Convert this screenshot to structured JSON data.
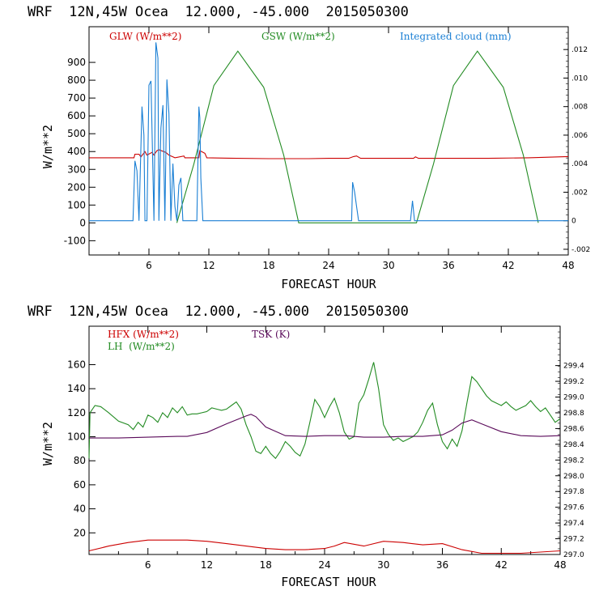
{
  "chart_data": [
    {
      "type": "line",
      "title": "WRF  12N,45W Ocea  12.000, -45.000  2015050300",
      "xlabel": "FORECAST HOUR",
      "ylabel": "W/m**2",
      "xlim": [
        0,
        48
      ],
      "ylim": [
        -180,
        1100
      ],
      "xticks": [
        "6",
        "12",
        "18",
        "24",
        "30",
        "36",
        "42",
        "48"
      ],
      "yticks": [
        "-100",
        "0",
        "100",
        "200",
        "300",
        "400",
        "500",
        "600",
        "700",
        "800",
        "900"
      ],
      "right_axis": {
        "ylim": [
          -0.0024,
          0.0136
        ],
        "ticks": [
          "-.002",
          "0",
          ".002",
          ".004",
          ".006",
          ".008",
          ".010",
          ".012"
        ]
      },
      "legend": {
        "glw": {
          "label": "GLW (W/m**2)",
          "color": "#cc0000"
        },
        "gsw": {
          "label": "GSW (W/m**2)",
          "color": "#228b22"
        },
        "cloud": {
          "label": "Integrated cloud (mm)",
          "color": "#1a7fd4"
        }
      },
      "series": [
        {
          "name": "GLW",
          "axis": "left",
          "color": "#cc0000",
          "x": [
            0,
            4.5,
            4.6,
            5.0,
            5.2,
            5.6,
            5.8,
            6.3,
            6.5,
            6.8,
            7.0,
            7.7,
            8.0,
            8.4,
            8.6,
            9.5,
            9.6,
            10.0,
            11.0,
            11.1,
            11.6,
            11.8,
            14,
            18,
            22,
            24,
            26,
            26.5,
            26.8,
            27.2,
            30,
            32.5,
            32.7,
            33,
            36,
            40,
            44,
            48
          ],
          "values": [
            365,
            365,
            385,
            385,
            370,
            400,
            380,
            395,
            380,
            405,
            410,
            395,
            380,
            370,
            365,
            375,
            365,
            365,
            365,
            405,
            390,
            365,
            363,
            360,
            360,
            362,
            362,
            372,
            375,
            362,
            362,
            362,
            370,
            362,
            362,
            362,
            365,
            372
          ]
        },
        {
          "name": "GSW",
          "axis": "left",
          "color": "#228b22",
          "x": [
            8.8,
            10.5,
            12.5,
            14.9,
            17.5,
            19.5,
            21.0,
            32.8,
            34.5,
            36.5,
            38.9,
            41.5,
            43.5,
            45.0
          ],
          "values": [
            0,
            330,
            770,
            963,
            760,
            380,
            0,
            0,
            330,
            770,
            963,
            760,
            380,
            0
          ]
        },
        {
          "name": "Integrated cloud",
          "axis": "right",
          "color": "#1a7fd4",
          "x": [
            0,
            4.4,
            4.6,
            4.8,
            5.0,
            5.3,
            5.5,
            5.6,
            5.8,
            6.0,
            6.2,
            6.5,
            6.7,
            6.9,
            7.0,
            7.2,
            7.4,
            7.6,
            7.8,
            8.0,
            8.2,
            8.4,
            8.6,
            8.8,
            9.0,
            9.2,
            9.4,
            9.6,
            9.8,
            10.0,
            10.8,
            11.0,
            11.1,
            11.2,
            11.4,
            11.6,
            26.3,
            26.4,
            26.6,
            26.8,
            27.0,
            32.2,
            32.4,
            32.6,
            33,
            48
          ],
          "values": [
            0,
            0,
            0.0042,
            0.0035,
            0,
            0.008,
            0.006,
            0,
            0,
            0.0095,
            0.0098,
            0,
            0.0125,
            0.0114,
            0,
            0.0065,
            0.0081,
            0,
            0.0099,
            0.0075,
            0,
            0.004,
            0.001,
            0,
            0.0025,
            0.003,
            0,
            0,
            0,
            0,
            0,
            0.008,
            0.0072,
            0.003,
            0,
            0,
            0,
            0.0027,
            0.002,
            0.001,
            0,
            0,
            0.0014,
            0,
            0,
            0
          ]
        }
      ]
    },
    {
      "type": "line",
      "title": "WRF  12N,45W Ocea  12.000, -45.000  2015050300",
      "xlabel": "FORECAST HOUR",
      "ylabel": "W/m**2",
      "xlim": [
        0,
        48
      ],
      "ylim": [
        2,
        192
      ],
      "xticks": [
        "6",
        "12",
        "18",
        "24",
        "30",
        "36",
        "42",
        "48"
      ],
      "yticks": [
        "20",
        "40",
        "60",
        "80",
        "100",
        "120",
        "140",
        "160"
      ],
      "right_axis": {
        "ylim": [
          297.0,
          299.9
        ],
        "ticks": [
          "297.0",
          "297.2",
          "297.4",
          "297.6",
          "297.8",
          "298.0",
          "298.2",
          "298.4",
          "298.6",
          "298.8",
          "299.0",
          "299.2",
          "299.4"
        ]
      },
      "legend": {
        "hfx": {
          "label": "HFX (W/m**2)",
          "color": "#cc0000"
        },
        "lh": {
          "label": "LH  (W/m**2)",
          "color": "#228b22"
        },
        "tsk": {
          "label": "TSK (K)",
          "color": "#5a0a5a"
        }
      },
      "series": [
        {
          "name": "HFX",
          "axis": "left",
          "color": "#cc0000",
          "x": [
            0,
            2,
            4,
            6,
            8,
            10,
            12,
            14,
            16,
            18,
            20,
            22,
            24,
            25,
            26,
            28,
            30,
            32,
            34,
            36,
            38,
            40,
            42,
            44,
            46,
            48
          ],
          "values": [
            5,
            9,
            12,
            14,
            14,
            14,
            13,
            11,
            9,
            7,
            6,
            6,
            7,
            9,
            12,
            9,
            13,
            12,
            10,
            11,
            6,
            3,
            3,
            3,
            4,
            5
          ]
        },
        {
          "name": "LH",
          "axis": "left",
          "color": "#228b22",
          "x": [
            0,
            0.1,
            0.6,
            1.2,
            2,
            3,
            4,
            4.5,
            5,
            5.5,
            6,
            6.5,
            7,
            7.5,
            8,
            8.5,
            9,
            9.5,
            10,
            10.5,
            11,
            11.5,
            12,
            12.5,
            13,
            13.5,
            14,
            14.5,
            15,
            15.5,
            16,
            16.5,
            17,
            17.5,
            18,
            18.5,
            19,
            19.5,
            20,
            20.5,
            21,
            21.5,
            22,
            22.5,
            23,
            23.5,
            24,
            24.5,
            25,
            25.5,
            26,
            26.5,
            27,
            27.5,
            28,
            28.5,
            29,
            29.5,
            30,
            30.5,
            31,
            31.5,
            32,
            32.5,
            33,
            33.5,
            34,
            34.5,
            35,
            35.5,
            36,
            36.5,
            37,
            37.5,
            38,
            38.5,
            39,
            39.5,
            40,
            40.5,
            41,
            41.5,
            42,
            42.5,
            43,
            43.5,
            44,
            44.5,
            45,
            45.5,
            46,
            46.5,
            47,
            47.5,
            48
          ],
          "values": [
            82,
            120,
            126,
            125,
            120,
            113,
            110,
            106,
            112,
            108,
            118,
            116,
            112,
            120,
            116,
            124,
            120,
            125,
            118,
            119,
            119,
            120,
            121,
            124,
            123,
            122,
            123,
            126,
            129,
            123,
            110,
            100,
            88,
            86,
            92,
            86,
            82,
            88,
            96,
            92,
            87,
            84,
            94,
            112,
            131,
            125,
            116,
            125,
            132,
            120,
            104,
            98,
            100,
            128,
            135,
            148,
            162,
            140,
            110,
            102,
            97,
            99,
            96,
            98,
            100,
            104,
            112,
            122,
            128,
            110,
            96,
            90,
            98,
            92,
            105,
            128,
            150,
            146,
            140,
            134,
            130,
            128,
            126,
            129,
            125,
            122,
            124,
            126,
            130,
            125,
            121,
            124,
            118,
            112,
            115
          ]
        },
        {
          "name": "TSK",
          "axis": "right",
          "color": "#5a0a5a",
          "x": [
            0,
            3,
            6,
            9,
            10,
            12,
            14,
            16,
            16.5,
            17,
            18,
            20,
            22,
            24,
            26,
            28,
            30,
            32,
            34,
            36,
            37,
            38,
            39,
            40,
            42,
            44,
            46,
            48
          ],
          "values": [
            298.48,
            298.48,
            298.49,
            298.5,
            298.5,
            298.55,
            298.66,
            298.76,
            298.78,
            298.75,
            298.62,
            298.51,
            298.5,
            298.51,
            298.51,
            298.49,
            298.49,
            298.5,
            298.5,
            298.52,
            298.58,
            298.67,
            298.71,
            298.66,
            298.56,
            298.51,
            298.5,
            298.51
          ]
        }
      ]
    }
  ]
}
